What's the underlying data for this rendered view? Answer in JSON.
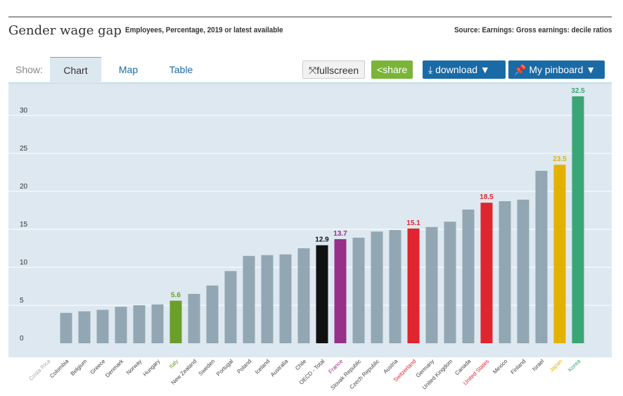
{
  "header": {
    "title": "Gender wage gap",
    "subtitle": "Employees, Percentage, 2019 or latest available",
    "source": "Source: Earnings: Gross earnings: decile ratios"
  },
  "toolbar": {
    "show_label": "Show:",
    "tabs": [
      "Chart",
      "Map",
      "Table"
    ],
    "fullscreen": "fullscreen",
    "share": "share",
    "download": "download ▼",
    "pinboard": "My pinboard ▼"
  },
  "chart_data": {
    "type": "bar",
    "title": "Gender wage gap",
    "ylabel": "",
    "xlabel": "",
    "ylim": [
      0,
      33
    ],
    "yticks": [
      0,
      5,
      10,
      15,
      20,
      25,
      30
    ],
    "grid": true,
    "categories": [
      "Costa Rica",
      "Colombia",
      "Belgium",
      "Greece",
      "Denmark",
      "Norway",
      "Hungary",
      "Italy",
      "New Zealand",
      "Sweden",
      "Portugal",
      "Poland",
      "Iceland",
      "Australia",
      "Chile",
      "OECD - Total",
      "France",
      "Slovak Republic",
      "Czech Republic",
      "Austria",
      "Switzerland",
      "Germany",
      "United Kingdom",
      "Canada",
      "United States",
      "Mexico",
      "Finland",
      "Israel",
      "Japan",
      "Korea"
    ],
    "values": [
      null,
      4.0,
      4.2,
      4.4,
      4.8,
      5.0,
      5.1,
      5.6,
      6.5,
      7.6,
      9.5,
      11.5,
      11.6,
      11.7,
      12.5,
      12.9,
      13.7,
      13.9,
      14.7,
      14.9,
      15.1,
      15.3,
      16.0,
      17.6,
      18.5,
      18.7,
      18.9,
      22.7,
      23.5,
      32.5
    ],
    "highlights": {
      "Italy": "#6a9f2a",
      "OECD - Total": "#111111",
      "France": "#963088",
      "Switzerland": "#e0252f",
      "United States": "#e0252f",
      "Japan": "#e5b100",
      "Korea": "#3aa575"
    },
    "label_colors": {
      "Costa Rica": "#aaaaaa"
    },
    "data_labels": {
      "Italy": "5.6",
      "OECD - Total": "12.9",
      "France": "13.7",
      "Switzerland": "15.1",
      "United States": "18.5",
      "Japan": "23.5",
      "Korea": "32.5"
    },
    "default_color": "#92a7b3"
  }
}
